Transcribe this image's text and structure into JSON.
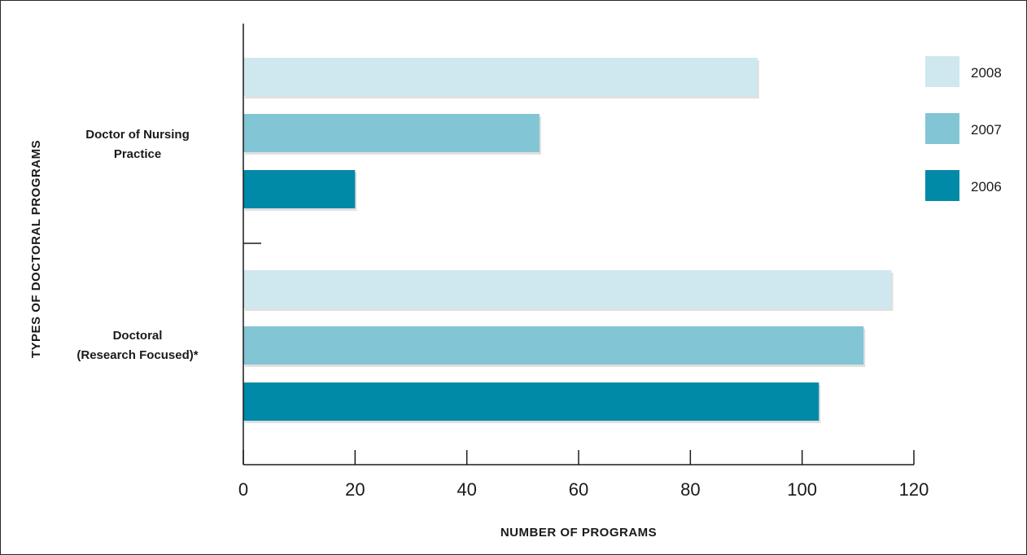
{
  "chart_data": {
    "type": "bar",
    "orientation": "horizontal",
    "title": "",
    "xlabel": "NUMBER OF PROGRAMS",
    "ylabel": "TYPES OF DOCTORAL PROGRAMS",
    "xlim": [
      0,
      120
    ],
    "xticks": [
      "0",
      "20",
      "40",
      "60",
      "80",
      "100",
      "120"
    ],
    "categories": [
      [
        "Doctor of Nursing",
        "Practice"
      ],
      [
        "Doctoral",
        "(Research Focused)*"
      ]
    ],
    "series": [
      {
        "name": "2008",
        "color": "#cfe7ee",
        "values": [
          92,
          116
        ]
      },
      {
        "name": "2007",
        "color": "#82c5d5",
        "values": [
          53,
          111
        ]
      },
      {
        "name": "2006",
        "color": "#0189a8",
        "values": [
          20,
          103
        ]
      }
    ],
    "legend_position": "right",
    "grid": false
  }
}
